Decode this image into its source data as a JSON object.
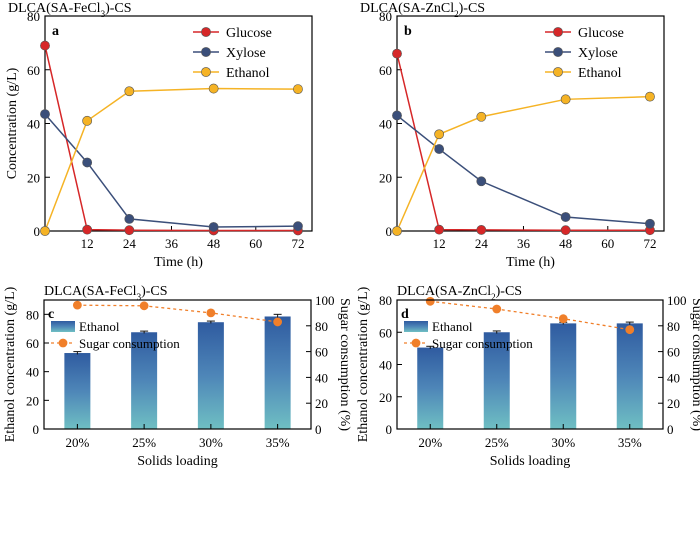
{
  "figure": {
    "panels": [
      "a",
      "b",
      "c",
      "d"
    ]
  },
  "chart_data": [
    {
      "type": "line",
      "panel_label": "a",
      "title": "DLCA(SA-FeCl3)-CS",
      "xlabel": "Time (h)",
      "ylabel": "Concentration (g/L)",
      "xlim": [
        0,
        76
      ],
      "ylim": [
        0,
        80
      ],
      "xticks": [
        12,
        24,
        36,
        48,
        60,
        72
      ],
      "yticks": [
        0,
        20,
        40,
        60,
        80
      ],
      "legend": "top-right",
      "grid": false,
      "series": [
        {
          "name": "Glucose",
          "color": "#d62728",
          "x": [
            0,
            12,
            24,
            48,
            72
          ],
          "y": [
            69,
            0.5,
            0.3,
            0.2,
            0.2
          ]
        },
        {
          "name": "Xylose",
          "color": "#3b4f7a",
          "x": [
            0,
            12,
            24,
            48,
            72
          ],
          "y": [
            43.5,
            25.5,
            4.5,
            1.5,
            1.8
          ]
        },
        {
          "name": "Ethanol",
          "color": "#f5b325",
          "x": [
            0,
            12,
            24,
            48,
            72
          ],
          "y": [
            0,
            41,
            52,
            53,
            52.8
          ]
        }
      ]
    },
    {
      "type": "line",
      "panel_label": "b",
      "title": "DLCA(SA-ZnCl2)-CS",
      "xlabel": "Time (h)",
      "ylabel": "",
      "xlim": [
        0,
        76
      ],
      "ylim": [
        0,
        80
      ],
      "xticks": [
        12,
        24,
        36,
        48,
        60,
        72
      ],
      "yticks": [
        0,
        20,
        40,
        60,
        80
      ],
      "legend": "top-right",
      "grid": false,
      "series": [
        {
          "name": "Glucose",
          "color": "#d62728",
          "x": [
            0,
            12,
            24,
            48,
            72
          ],
          "y": [
            66,
            0.5,
            0.4,
            0.3,
            0.3
          ]
        },
        {
          "name": "Xylose",
          "color": "#3b4f7a",
          "x": [
            0,
            12,
            24,
            48,
            72
          ],
          "y": [
            43,
            30.5,
            18.5,
            5.2,
            2.7
          ]
        },
        {
          "name": "Ethanol",
          "color": "#f5b325",
          "x": [
            0,
            12,
            24,
            48,
            72
          ],
          "y": [
            0,
            36,
            42.5,
            49,
            50
          ]
        }
      ]
    },
    {
      "type": "bar",
      "panel_label": "c",
      "title": "DLCA(SA-FeCl3)-CS",
      "xlabel": "Solids loading",
      "ylabel": "Ethanol concentration (g/L)",
      "y2label": "Sugar consumption (%)",
      "categories": [
        "20%",
        "25%",
        "30%",
        "35%"
      ],
      "ylim": [
        0,
        90
      ],
      "y2lim": [
        0,
        100
      ],
      "yticks": [
        0,
        20,
        40,
        60,
        80
      ],
      "y2ticks": [
        0,
        20,
        40,
        60,
        80,
        100
      ],
      "legend": "top-left",
      "bar_series": {
        "name": "Ethanol",
        "values": [
          53,
          67.5,
          74.5,
          78.5
        ],
        "errors": [
          1,
          0.8,
          0.8,
          1.5
        ]
      },
      "line_series": {
        "name": "Sugar consumption",
        "color": "#f07f2a",
        "values": [
          96,
          95.5,
          90,
          83
        ]
      }
    },
    {
      "type": "bar",
      "panel_label": "d",
      "title": "DLCA(SA-ZnCl2)-CS",
      "xlabel": "Solids loading",
      "ylabel": "Ethanol concentration (g/L)",
      "y2label": "Sugar consumption (%)",
      "categories": [
        "20%",
        "25%",
        "30%",
        "35%"
      ],
      "ylim": [
        0,
        80
      ],
      "y2lim": [
        0,
        100
      ],
      "yticks": [
        0,
        20,
        40,
        60,
        80
      ],
      "y2ticks": [
        0,
        20,
        40,
        60,
        80,
        100
      ],
      "legend": "top-left",
      "bar_series": {
        "name": "Ethanol",
        "values": [
          50.5,
          60,
          65.5,
          65.5
        ],
        "errors": [
          0.8,
          0.8,
          0.7,
          0.8
        ]
      },
      "line_series": {
        "name": "Sugar consumption",
        "color": "#f07f2a",
        "values": [
          99,
          93,
          85.5,
          77
        ]
      }
    }
  ]
}
